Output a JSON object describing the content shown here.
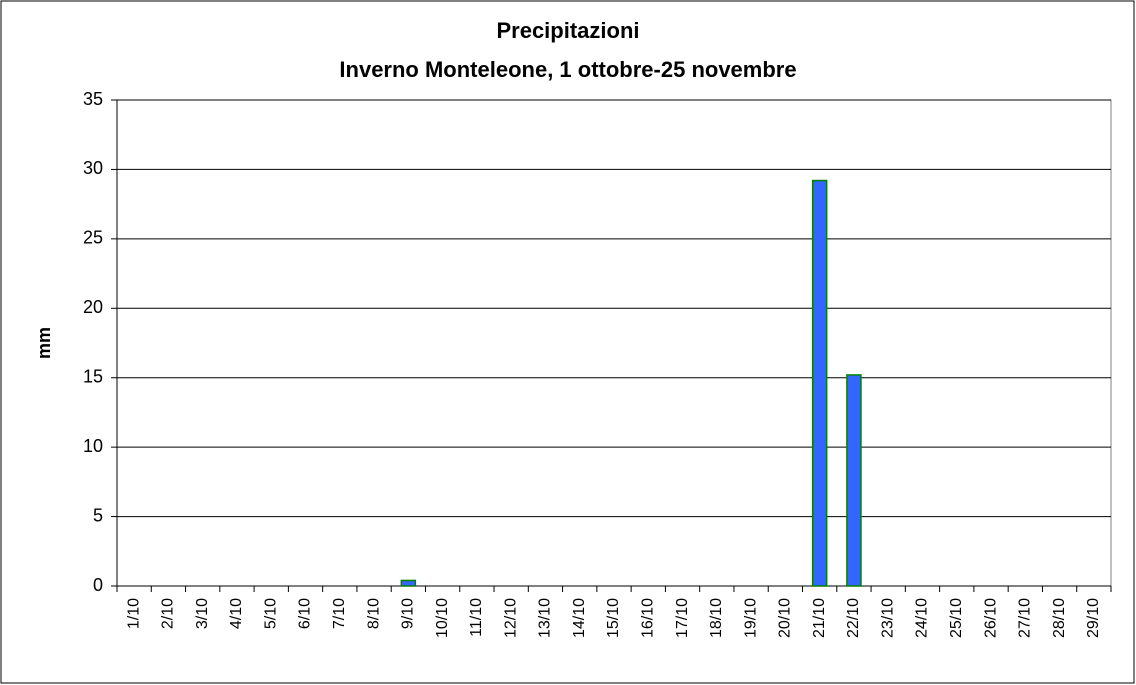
{
  "chart_data": {
    "type": "bar",
    "title": "Precipitazioni",
    "subtitle": "Inverno Monteleone, 1 ottobre-25 novembre",
    "y_label": "mm",
    "categories": [
      "1/10",
      "2/10",
      "3/10",
      "4/10",
      "5/10",
      "6/10",
      "7/10",
      "8/10",
      "9/10",
      "10/10",
      "11/10",
      "12/10",
      "13/10",
      "14/10",
      "15/10",
      "16/10",
      "17/10",
      "18/10",
      "19/10",
      "20/10",
      "21/10",
      "22/10",
      "23/10",
      "24/10",
      "25/10",
      "26/10",
      "27/10",
      "28/10",
      "29/10"
    ],
    "values": [
      0,
      0,
      0,
      0,
      0,
      0,
      0,
      0,
      0.4,
      0,
      0,
      0,
      0,
      0,
      0,
      0,
      0,
      0,
      0,
      0,
      29.2,
      15.2,
      0,
      0,
      0,
      0,
      0,
      0,
      0
    ],
    "color": "#3366ff",
    "edge_color": "#008000",
    "ylim": [
      0,
      35
    ],
    "yticks": [
      0,
      5,
      10,
      15,
      20,
      25,
      30,
      35
    ],
    "grid": true
  }
}
